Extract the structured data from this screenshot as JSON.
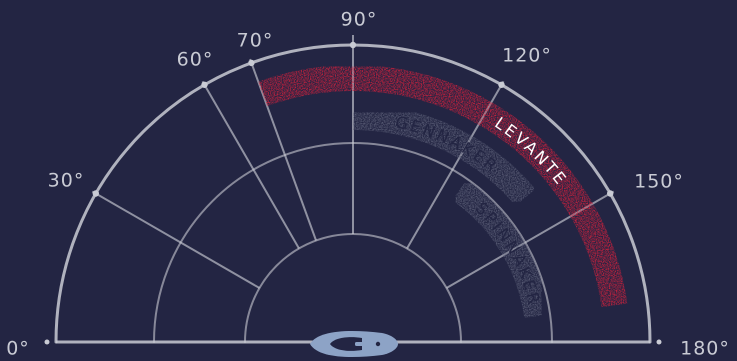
{
  "colors": {
    "background": "#232543",
    "grid": "#c9cbd4",
    "levante": "#d6203c",
    "sail_band": "#5c5f78",
    "sail_text": "#232543",
    "levante_text": "#ffffff",
    "boat_hull": "#8da3c6",
    "boat_deck": "#232543"
  },
  "angle_ticks": [
    {
      "angle": 0,
      "label": "0°"
    },
    {
      "angle": 30,
      "label": "30°"
    },
    {
      "angle": 60,
      "label": "60°"
    },
    {
      "angle": 70,
      "label": "70°"
    },
    {
      "angle": 90,
      "label": "90°"
    },
    {
      "angle": 120,
      "label": "120°"
    },
    {
      "angle": 150,
      "label": "150°"
    },
    {
      "angle": 180,
      "label": "180°"
    }
  ],
  "sail_ranges": [
    {
      "name": "LEVANTE",
      "start_angle": 70,
      "end_angle": 172,
      "color_key": "levante",
      "text_key": "levante_text"
    },
    {
      "name": "GENNAKER",
      "start_angle": 90,
      "end_angle": 140,
      "color_key": "sail_band",
      "text_key": "sail_text"
    },
    {
      "name": "SPINNAKER",
      "start_angle": 125,
      "end_angle": 172,
      "color_key": "sail_band",
      "text_key": "sail_text"
    }
  ],
  "boat": {
    "icon": "sailboat-top-view-icon"
  }
}
